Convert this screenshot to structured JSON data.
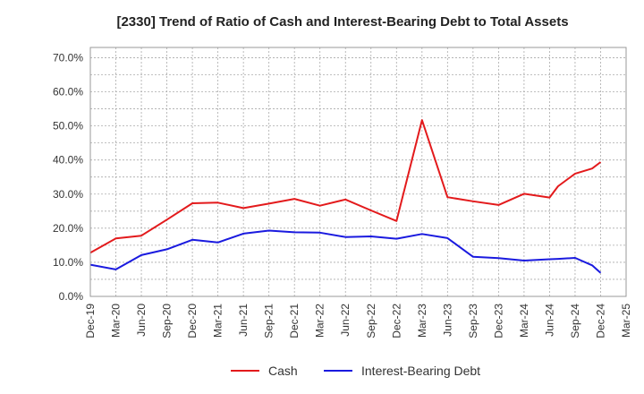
{
  "chart_data": {
    "type": "line",
    "title": "[2330]  Trend of Ratio of Cash and Interest-Bearing Debt to Total Assets",
    "xlabel": "",
    "ylabel": "",
    "ylim": [
      0,
      73
    ],
    "y_ticks": [
      0,
      10,
      20,
      30,
      40,
      50,
      60,
      70
    ],
    "y_tick_labels": [
      "0.0%",
      "10.0%",
      "20.0%",
      "30.0%",
      "40.0%",
      "50.0%",
      "60.0%",
      "70.0%"
    ],
    "x_tick_labels": [
      "Dec-19",
      "Mar-20",
      "Jun-20",
      "Sep-20",
      "Dec-20",
      "Mar-21",
      "Jun-21",
      "Sep-21",
      "Dec-21",
      "Mar-22",
      "Jun-22",
      "Sep-22",
      "Dec-22",
      "Mar-23",
      "Jun-23",
      "Sep-23",
      "Dec-23",
      "Mar-24",
      "Jun-24",
      "Sep-24",
      "Dec-24",
      "Mar-25"
    ],
    "x": [
      "Dec-19",
      "Mar-20",
      "Jun-20",
      "Sep-20",
      "Dec-20",
      "Mar-21",
      "Jun-21",
      "Sep-21",
      "Dec-21",
      "Mar-22",
      "Jun-22",
      "Sep-22",
      "Dec-22",
      "Mar-23",
      "Jun-23",
      "Sep-23",
      "Dec-23",
      "Mar-24",
      "Jun-24",
      "Jul-24",
      "Sep-24",
      "Nov-24",
      "Dec-24"
    ],
    "grid": true,
    "legend_position": "bottom",
    "series": [
      {
        "name": "Cash",
        "color": "#e31a1c",
        "values": [
          12.8,
          17.0,
          17.8,
          22.5,
          27.3,
          27.5,
          25.9,
          27.2,
          28.6,
          26.6,
          28.4,
          25.2,
          22.1,
          51.7,
          29.1,
          27.9,
          26.8,
          30.1,
          29.0,
          32.3,
          36.0,
          37.5,
          39.4
        ]
      },
      {
        "name": "Interest-Bearing Debt",
        "color": "#1a1adf",
        "values": [
          9.3,
          7.9,
          12.1,
          13.8,
          16.6,
          15.8,
          18.4,
          19.3,
          18.8,
          18.7,
          17.4,
          17.6,
          16.9,
          18.3,
          17.1,
          11.6,
          11.2,
          10.5,
          10.9,
          11.0,
          11.3,
          9.1,
          6.9
        ]
      }
    ]
  }
}
